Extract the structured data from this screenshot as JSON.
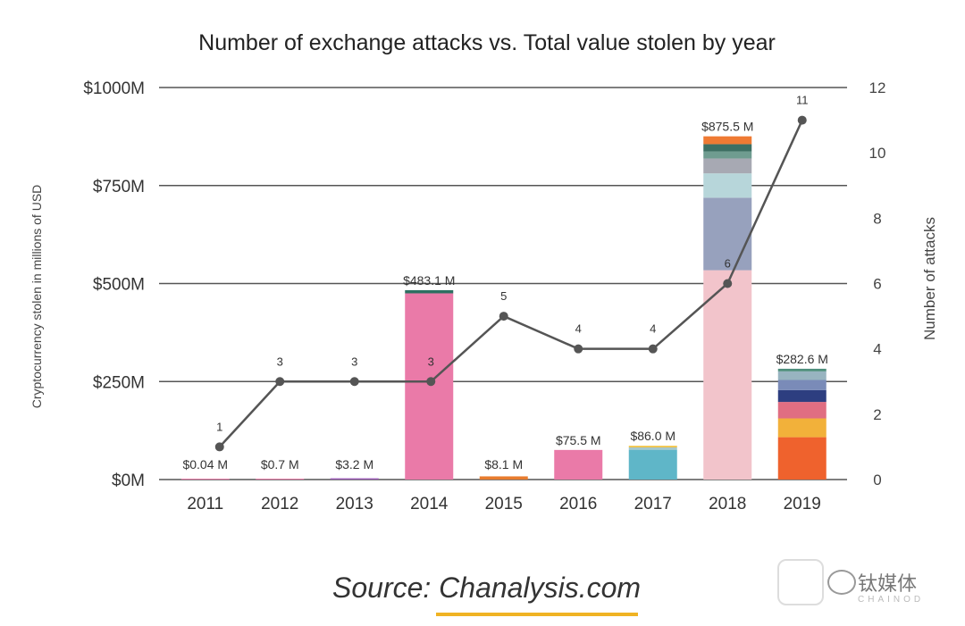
{
  "chart_data": {
    "type": "bar",
    "title": "Number of exchange attacks vs. Total value stolen by year",
    "categories": [
      "2011",
      "2012",
      "2013",
      "2014",
      "2015",
      "2016",
      "2017",
      "2018",
      "2019"
    ],
    "ylabel": "Cryptocurrency stolen in millions of USD",
    "y2label": "Number of attacks",
    "ylim": [
      0,
      1000
    ],
    "y2lim": [
      0,
      12
    ],
    "y_ticks": [
      "$0M",
      "$250M",
      "$500M",
      "$750M",
      "$1000M"
    ],
    "y2_ticks": [
      "0",
      "2",
      "4",
      "6",
      "8",
      "10",
      "12"
    ],
    "value_labels": [
      "$0.04 M",
      "$0.7 M",
      "$3.2 M",
      "$483.1 M",
      "$8.1 M",
      "$75.5 M",
      "$86.0 M",
      "$875.5 M",
      "$282.6 M"
    ],
    "totals": [
      0.04,
      0.7,
      3.2,
      483.1,
      8.1,
      75.5,
      86.0,
      875.5,
      282.6
    ],
    "stacks": [
      [
        {
          "value": 0.04,
          "color": "#e87ba8"
        }
      ],
      [
        {
          "value": 0.7,
          "color": "#e87ba8"
        }
      ],
      [
        {
          "value": 3.2,
          "color": "#9b59b6"
        }
      ],
      [
        {
          "value": 475.0,
          "color": "#ea7aa8"
        },
        {
          "value": 8.1,
          "color": "#2e6f62"
        }
      ],
      [
        {
          "value": 8.1,
          "color": "#e87c2e"
        }
      ],
      [
        {
          "value": 75.5,
          "color": "#ea7aa8"
        }
      ],
      [
        {
          "value": 76.0,
          "color": "#5fb6c8"
        },
        {
          "value": 6.0,
          "color": "#a4c7cc"
        },
        {
          "value": 4.0,
          "color": "#f0c040"
        }
      ],
      [
        {
          "value": 534.0,
          "color": "#f2c4cb"
        },
        {
          "value": 185.0,
          "color": "#97a1bd"
        },
        {
          "value": 62.0,
          "color": "#b7d6da"
        },
        {
          "value": 38.0,
          "color": "#a7a9b3"
        },
        {
          "value": 18.0,
          "color": "#6f9c90"
        },
        {
          "value": 18.5,
          "color": "#3d6f63"
        },
        {
          "value": 20.0,
          "color": "#ef7a33"
        }
      ],
      [
        {
          "value": 108.0,
          "color": "#ef622d"
        },
        {
          "value": 48.0,
          "color": "#f2b13a"
        },
        {
          "value": 42.0,
          "color": "#e06e82"
        },
        {
          "value": 30.0,
          "color": "#2d3e80"
        },
        {
          "value": 26.0,
          "color": "#7a8bb8"
        },
        {
          "value": 22.0,
          "color": "#98b4c0"
        },
        {
          "value": 6.6,
          "color": "#4f8f7d"
        }
      ]
    ],
    "series": [
      {
        "name": "Number of attacks",
        "values": [
          1,
          3,
          3,
          3,
          5,
          4,
          4,
          6,
          11
        ],
        "labels": [
          "1",
          "3",
          "3",
          "3",
          "5",
          "4",
          "4",
          "6",
          "11"
        ],
        "color": "#555555"
      }
    ],
    "legend": "none",
    "grid": true
  },
  "source": {
    "prefix": "Source: ",
    "link": "Chanalysis.com",
    "underline_color": "#f0b323"
  },
  "watermark": {
    "text": "钛媒体",
    "sub": "CHAINOD"
  }
}
